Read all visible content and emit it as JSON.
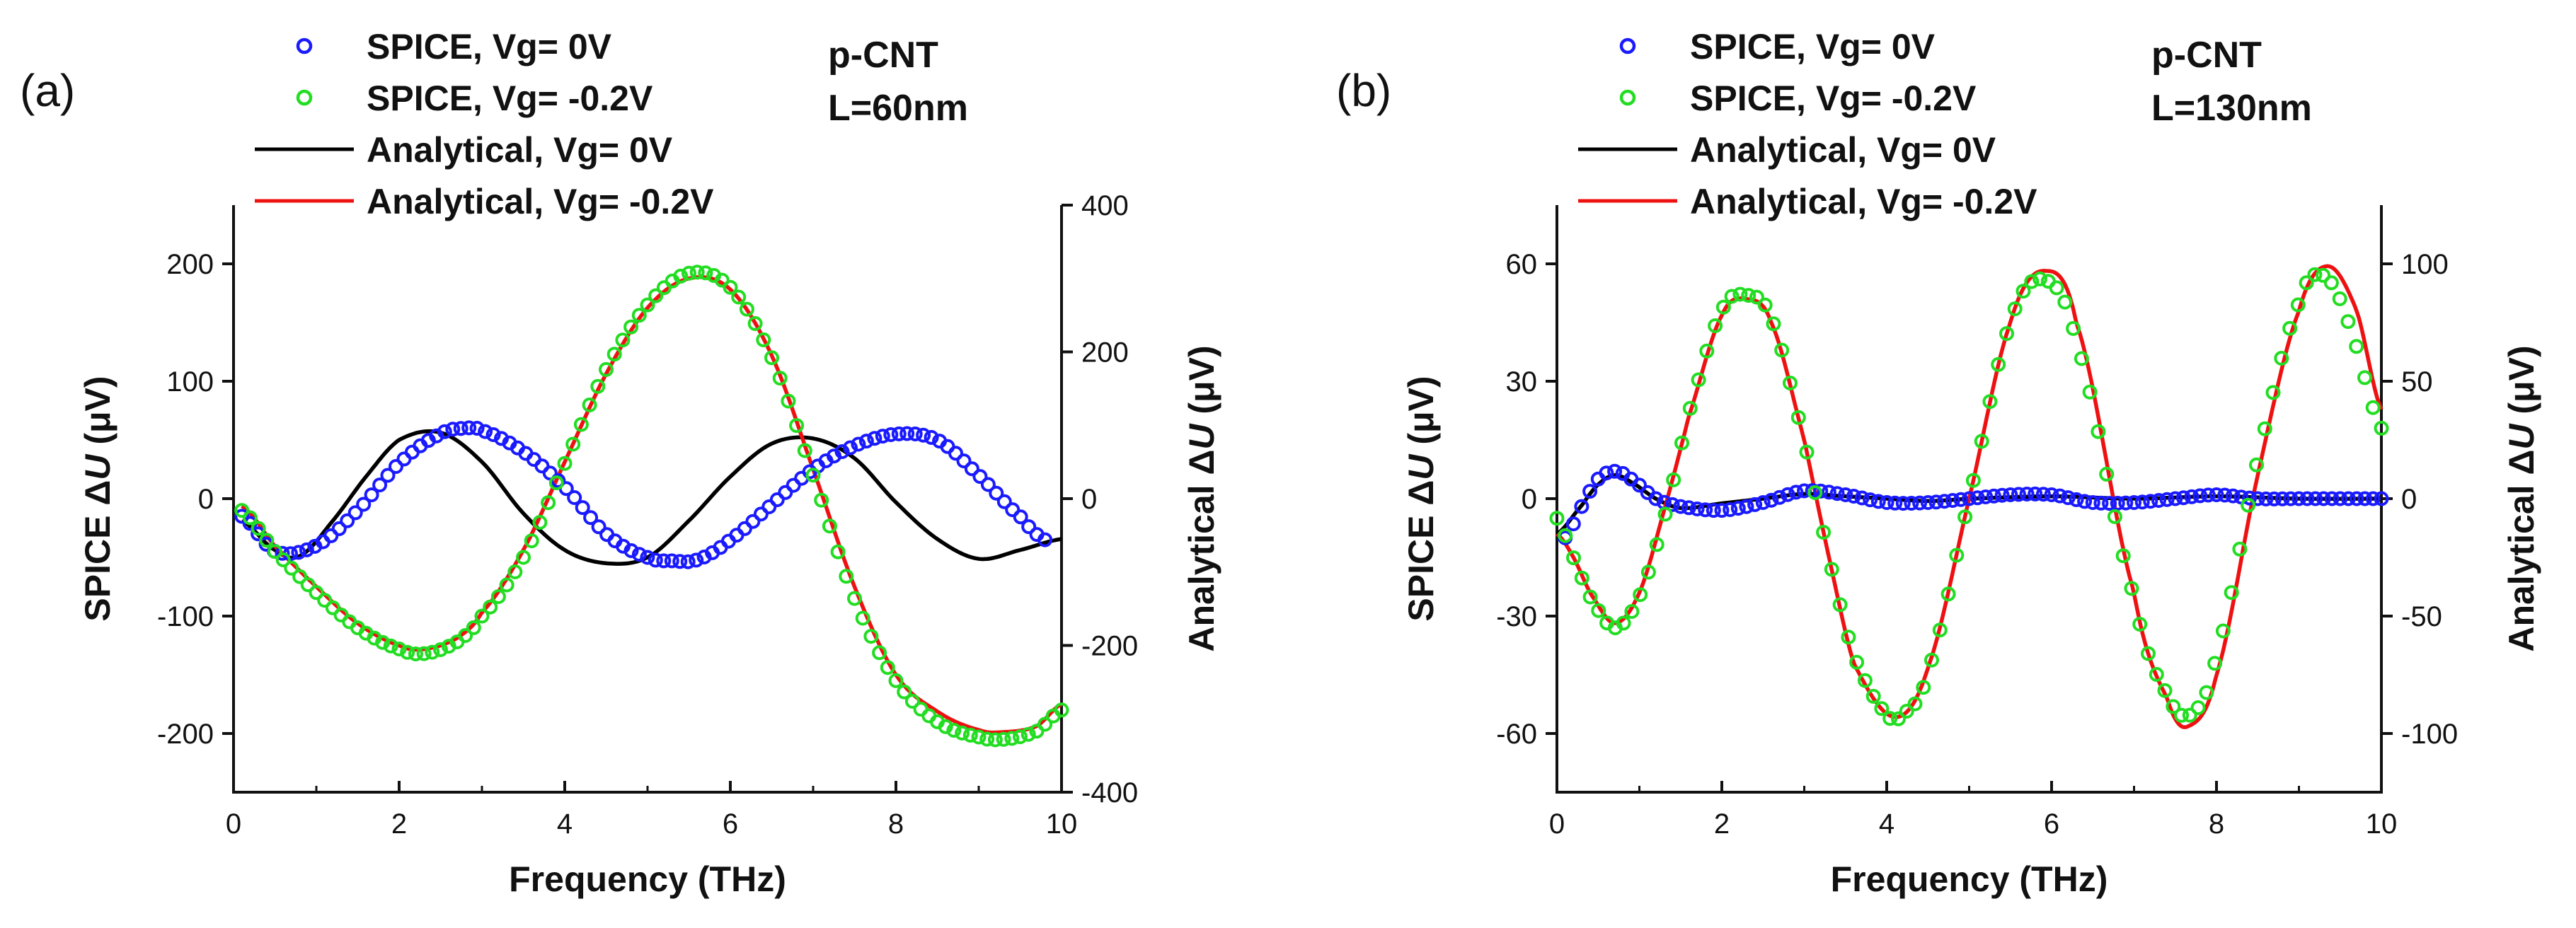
{
  "colors": {
    "spice_vg0": "#1a1aff",
    "spice_vg02": "#22dd22",
    "analytical_vg0": "#000000",
    "analytical_vg02": "#ee1111"
  },
  "chart_data": [
    {
      "panel": "(a)",
      "type": "line",
      "annotation": [
        "p-CNT",
        "L=60nm"
      ],
      "xlabel": "Frequency (THz)",
      "ylabel_left": "SPICE ΔU (μV)",
      "ylabel_right": "Analytical ΔU (μV)",
      "xlim": [
        0,
        10
      ],
      "ylim_left": [
        -250,
        250
      ],
      "ylim_right": [
        -400,
        400
      ],
      "xticks": [
        "0",
        "2",
        "4",
        "6",
        "8",
        "10"
      ],
      "yticks_left": [
        "-200",
        "-100",
        "0",
        "100",
        "200"
      ],
      "yticks_right": [
        "-400",
        "-200",
        "0",
        "200",
        "400"
      ],
      "legend": [
        "SPICE, Vg= 0V",
        "SPICE, Vg= -0.2V",
        "Analytical, Vg= 0V",
        "Analytical, Vg= -0.2V"
      ],
      "series": [
        {
          "name": "SPICE, Vg= 0V",
          "style": "markers",
          "axis": "left",
          "x": [
            0.1,
            0.5,
            1.0,
            1.5,
            2.0,
            2.5,
            2.8,
            3.0,
            3.5,
            4.0,
            4.5,
            5.0,
            5.3,
            5.6,
            6.0,
            6.5,
            7.0,
            7.5,
            8.0,
            8.5,
            9.0,
            9.5,
            9.8
          ],
          "y": [
            -15,
            -45,
            -40,
            -10,
            30,
            55,
            60,
            58,
            40,
            10,
            -30,
            -50,
            -53,
            -52,
            -35,
            -5,
            25,
            45,
            55,
            50,
            20,
            -15,
            -35
          ]
        },
        {
          "name": "SPICE, Vg= -0.2V",
          "style": "markers",
          "axis": "left",
          "x": [
            0.1,
            0.5,
            1.0,
            1.5,
            2.0,
            2.3,
            2.7,
            3.0,
            3.5,
            4.0,
            4.5,
            5.0,
            5.5,
            6.0,
            6.5,
            7.0,
            7.5,
            8.0,
            8.5,
            9.0,
            9.3,
            9.7,
            10.0
          ],
          "y": [
            -10,
            -45,
            -80,
            -110,
            -128,
            -132,
            -122,
            -100,
            -50,
            30,
            110,
            165,
            192,
            180,
            120,
            20,
            -85,
            -155,
            -190,
            -203,
            -205,
            -198,
            -180
          ]
        },
        {
          "name": "Analytical, Vg= 0V",
          "style": "line",
          "axis": "right",
          "x": [
            0.1,
            0.5,
            0.8,
            1.2,
            1.6,
            2.0,
            2.5,
            3.0,
            3.5,
            4.0,
            4.5,
            5.0,
            5.5,
            6.0,
            6.5,
            7.0,
            7.5,
            8.0,
            8.5,
            9.0,
            9.5,
            10.0
          ],
          "y": [
            -30,
            -70,
            -78,
            -30,
            30,
            80,
            90,
            50,
            -20,
            -70,
            -88,
            -80,
            -30,
            30,
            75,
            82,
            55,
            -5,
            -55,
            -82,
            -70,
            -55
          ]
        },
        {
          "name": "Analytical, Vg= -0.2V",
          "style": "line",
          "axis": "right",
          "x": [
            0.1,
            0.5,
            1.0,
            1.5,
            2.0,
            2.3,
            2.7,
            3.0,
            3.5,
            4.0,
            4.5,
            5.0,
            5.5,
            6.0,
            6.5,
            7.0,
            7.5,
            8.0,
            8.5,
            9.0,
            9.3,
            9.7,
            10.0
          ],
          "y": [
            -10,
            -65,
            -120,
            -170,
            -200,
            -205,
            -190,
            -155,
            -70,
            50,
            170,
            260,
            300,
            285,
            195,
            40,
            -120,
            -240,
            -290,
            -315,
            -318,
            -310,
            -280
          ]
        }
      ]
    },
    {
      "panel": "(b)",
      "type": "line",
      "annotation": [
        "p-CNT",
        "L=130nm"
      ],
      "xlabel": "Frequency (THz)",
      "ylabel_left": "SPICE ΔU (μV)",
      "ylabel_right": "Analytical ΔU (μV)",
      "xlim": [
        0,
        10
      ],
      "ylim_left": [
        -75,
        75
      ],
      "ylim_right": [
        -125,
        125
      ],
      "xticks": [
        "0",
        "2",
        "4",
        "6",
        "8",
        "10"
      ],
      "yticks_left": [
        "-60",
        "-30",
        "0",
        "30",
        "60"
      ],
      "yticks_right": [
        "-100",
        "-50",
        "0",
        "50",
        "100"
      ],
      "legend": [
        "SPICE, Vg= 0V",
        "SPICE, Vg= -0.2V",
        "Analytical, Vg= 0V",
        "Analytical, Vg= -0.2V"
      ],
      "series": [
        {
          "name": "SPICE, Vg= 0V",
          "style": "markers",
          "axis": "left",
          "x": [
            0.1,
            0.3,
            0.5,
            0.7,
            0.9,
            1.2,
            1.5,
            2.0,
            2.5,
            3.0,
            3.5,
            4.0,
            4.5,
            5.0,
            5.5,
            6.0,
            6.5,
            7.0,
            7.5,
            8.0,
            8.5,
            9.0,
            9.5,
            10.0
          ],
          "y": [
            -10,
            -2,
            5,
            7,
            5,
            0,
            -2,
            -3,
            -1,
            2,
            1,
            -1,
            -1,
            0,
            1,
            1,
            -1,
            -1,
            0,
            1,
            0,
            0,
            0,
            0
          ]
        },
        {
          "name": "SPICE, Vg= -0.2V",
          "style": "markers",
          "axis": "left",
          "x": [
            0.0,
            0.2,
            0.4,
            0.7,
            1.0,
            1.3,
            1.6,
            2.0,
            2.3,
            2.6,
            3.0,
            3.3,
            3.6,
            4.0,
            4.2,
            4.5,
            5.0,
            5.5,
            5.9,
            6.3,
            7.0,
            7.4,
            7.7,
            8.0,
            8.5,
            9.0,
            9.3,
            9.6,
            10.0
          ],
          "y": [
            -5,
            -15,
            -25,
            -33,
            -25,
            -5,
            22,
            48,
            52,
            46,
            15,
            -15,
            -40,
            -55,
            -55,
            -44,
            0,
            45,
            56,
            40,
            -25,
            -50,
            -55,
            -40,
            10,
            50,
            57,
            45,
            18
          ]
        },
        {
          "name": "Analytical, Vg= 0V",
          "style": "line",
          "axis": "right",
          "x": [
            0.0,
            0.3,
            0.5,
            0.7,
            0.9,
            1.2,
            1.5,
            2.0,
            2.5,
            3.0,
            3.5,
            4.0,
            4.5,
            5.0,
            6.0,
            7.0,
            8.0,
            9.0,
            10.0
          ],
          "y": [
            -15,
            -3,
            6,
            10,
            7,
            0,
            -4,
            -2,
            0,
            2,
            1,
            0,
            -1,
            0,
            1,
            0,
            1,
            0,
            0
          ]
        },
        {
          "name": "Analytical, Vg= -0.2V",
          "style": "line",
          "axis": "right",
          "x": [
            0.0,
            0.2,
            0.4,
            0.7,
            1.0,
            1.3,
            1.6,
            2.0,
            2.3,
            2.6,
            3.0,
            3.3,
            3.6,
            4.1,
            4.5,
            5.0,
            5.5,
            5.9,
            6.3,
            7.0,
            7.4,
            7.65,
            8.0,
            8.5,
            9.0,
            9.35,
            9.7,
            10.0
          ],
          "y": [
            -15,
            -25,
            -40,
            -53,
            -40,
            -5,
            35,
            78,
            85,
            75,
            25,
            -25,
            -70,
            -93,
            -72,
            0,
            75,
            97,
            75,
            -40,
            -85,
            -97,
            -75,
            10,
            80,
            99,
            80,
            38
          ]
        }
      ]
    }
  ]
}
